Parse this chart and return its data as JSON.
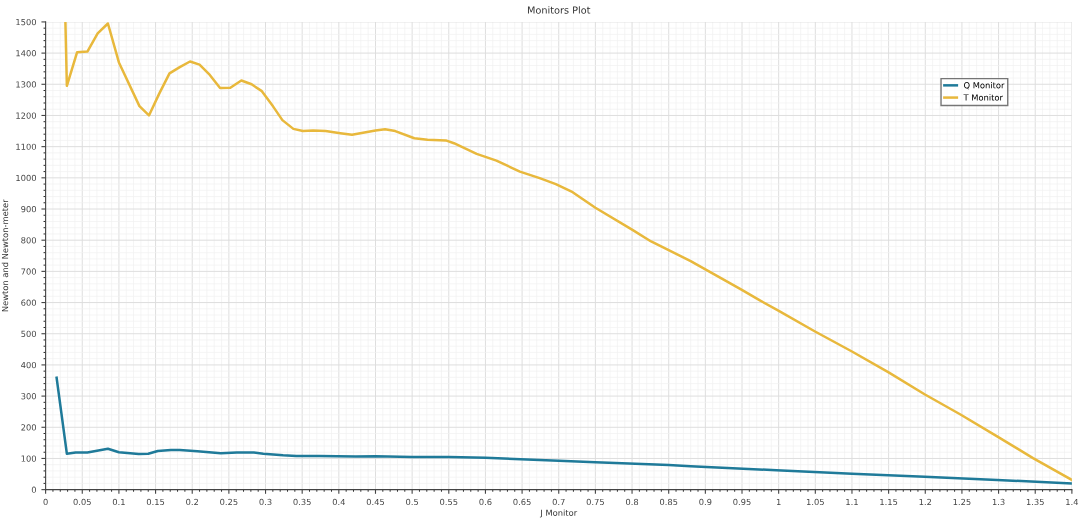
{
  "chart_data": {
    "type": "line",
    "title": "Monitors Plot",
    "xlabel": "J Monitor",
    "ylabel": "Newton and Newton-meter",
    "xlim": [
      0,
      1.4
    ],
    "ylim": [
      0,
      1500
    ],
    "xticks": [
      0,
      0.05,
      0.1,
      0.15,
      0.2,
      0.25,
      0.3,
      0.35,
      0.4,
      0.45,
      0.5,
      0.55,
      0.6,
      0.65,
      0.7,
      0.75,
      0.8,
      0.85,
      0.9,
      0.95,
      1,
      1.05,
      1.1,
      1.15,
      1.2,
      1.25,
      1.3,
      1.35,
      1.4
    ],
    "yticks": [
      0,
      100,
      200,
      300,
      400,
      500,
      600,
      700,
      800,
      900,
      1000,
      1100,
      1200,
      1300,
      1400,
      1500
    ],
    "grid": true,
    "legend": "top right",
    "marker": "none",
    "line_style": "solid",
    "series": [
      {
        "name": "Q Monitor",
        "color": "#1f7a99",
        "x": [
          0.015,
          0.029,
          0.041,
          0.057,
          0.085,
          0.1,
          0.127,
          0.14,
          0.153,
          0.171,
          0.183,
          0.207,
          0.239,
          0.261,
          0.284,
          0.297,
          0.324,
          0.342,
          0.373,
          0.423,
          0.45,
          0.5,
          0.55,
          0.6,
          0.7,
          0.75,
          0.85,
          0.88,
          0.997,
          1.1,
          1.199,
          1.298,
          1.4
        ],
        "values": [
          359,
          115,
          119,
          119,
          131,
          120,
          114,
          115,
          124,
          127,
          127,
          123,
          117,
          119,
          119,
          115,
          110,
          108,
          108,
          106,
          107,
          105,
          105,
          102,
          93,
          88,
          79,
          75,
          62,
          51,
          41,
          31,
          20
        ]
      },
      {
        "name": "T Monitor",
        "color": "#e8b83c",
        "x": [
          0.027,
          0.029,
          0.043,
          0.057,
          0.071,
          0.085,
          0.1,
          0.128,
          0.141,
          0.155,
          0.169,
          0.183,
          0.197,
          0.21,
          0.224,
          0.238,
          0.252,
          0.267,
          0.281,
          0.295,
          0.31,
          0.323,
          0.338,
          0.351,
          0.365,
          0.382,
          0.402,
          0.418,
          0.45,
          0.463,
          0.477,
          0.503,
          0.521,
          0.546,
          0.557,
          0.588,
          0.615,
          0.647,
          0.674,
          0.696,
          0.719,
          0.75,
          0.8,
          0.826,
          0.88,
          0.948,
          0.975,
          0.999,
          1.049,
          1.1,
          1.15,
          1.199,
          1.248,
          1.298,
          1.347,
          1.4
        ],
        "values": [
          1500,
          1295,
          1403,
          1405,
          1463,
          1495,
          1370,
          1230,
          1200,
          1270,
          1335,
          1355,
          1373,
          1363,
          1330,
          1288,
          1289,
          1312,
          1300,
          1278,
          1230,
          1185,
          1157,
          1150,
          1152,
          1150,
          1143,
          1138,
          1152,
          1156,
          1150,
          1127,
          1122,
          1120,
          1111,
          1077,
          1055,
          1020,
          999,
          980,
          954,
          904,
          834,
          796,
          733,
          643,
          606,
          575,
          508,
          443,
          376,
          306,
          241,
          171,
          101,
          31
        ]
      }
    ]
  }
}
